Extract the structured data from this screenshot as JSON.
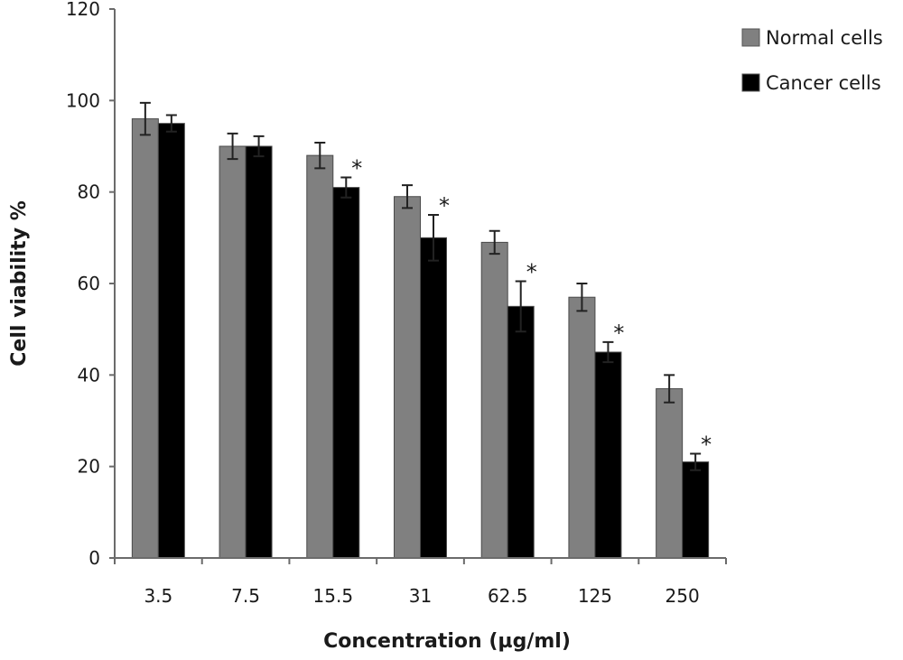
{
  "chart_data": {
    "type": "bar",
    "ylabel": "Cell viability %",
    "xlabel": "Concentration (µg/ml)",
    "ylim": [
      0,
      120
    ],
    "yticks": [
      0,
      20,
      40,
      60,
      80,
      100,
      120
    ],
    "grid": false,
    "legend_position": "top-right",
    "categories": [
      "3.5",
      "7.5",
      "15.5",
      "31",
      "62.5",
      "125",
      "250"
    ],
    "series": [
      {
        "name": "Normal cells",
        "color": "#808080",
        "values": [
          96,
          90,
          88,
          79,
          69,
          57,
          37
        ],
        "errors": [
          3.5,
          2.8,
          2.8,
          2.5,
          2.5,
          3.0,
          3.0
        ]
      },
      {
        "name": "Cancer cells",
        "color": "#000000",
        "values": [
          95,
          90,
          81,
          70,
          55,
          45,
          21
        ],
        "errors": [
          1.8,
          2.2,
          2.2,
          5.0,
          5.5,
          2.2,
          1.8
        ]
      }
    ],
    "annotations": [
      {
        "category": "15.5",
        "text": "*"
      },
      {
        "category": "31",
        "text": "*"
      },
      {
        "category": "62.5",
        "text": "*"
      },
      {
        "category": "125",
        "text": "*"
      },
      {
        "category": "250",
        "text": "*"
      }
    ]
  }
}
